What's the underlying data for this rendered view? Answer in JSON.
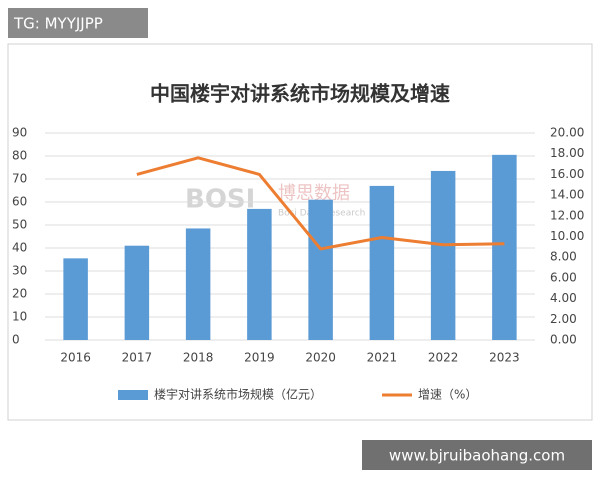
{
  "tag": "TG: MYYJJPP",
  "site": "www.bjruibaohang.com",
  "brand": {
    "logo": "BOSI",
    "name": "博思数据",
    "english": "Bosi Data Research"
  },
  "chart_data": {
    "type": "combo",
    "title": "中国楼宇对讲系统市场规模及增速",
    "categories": [
      "2016",
      "2017",
      "2018",
      "2019",
      "2020",
      "2021",
      "2022",
      "2023"
    ],
    "series": [
      {
        "name": "楼宇对讲系统市场规模（亿元）",
        "type": "bar",
        "color": "#5b9bd5",
        "values": [
          35.5,
          41,
          48.5,
          57,
          61,
          67,
          73.5,
          80.5
        ]
      },
      {
        "name": "增速（%）",
        "type": "line",
        "axis": "y2",
        "color": "#ed7d31",
        "values": [
          null,
          16.0,
          17.6,
          16.0,
          8.8,
          9.9,
          9.2,
          9.3
        ]
      }
    ],
    "ylim": [
      0,
      90
    ],
    "yticks": [
      0,
      10,
      20,
      30,
      40,
      50,
      60,
      70,
      80,
      90
    ],
    "y2lim": [
      0,
      20
    ],
    "y2ticks": [
      {
        "value": 0,
        "label": "0.00"
      },
      {
        "value": 2,
        "label": "2.00"
      },
      {
        "value": 4,
        "label": "4.00"
      },
      {
        "value": 6,
        "label": "6.00"
      },
      {
        "value": 8,
        "label": "8.00"
      },
      {
        "value": 10,
        "label": "10.00"
      },
      {
        "value": 12,
        "label": "12.00"
      },
      {
        "value": 14,
        "label": "14.00"
      },
      {
        "value": 16,
        "label": "16.00"
      },
      {
        "value": 18,
        "label": "18.00"
      },
      {
        "value": 20,
        "label": "20.00"
      }
    ],
    "grid": true,
    "legend": "bottom"
  }
}
